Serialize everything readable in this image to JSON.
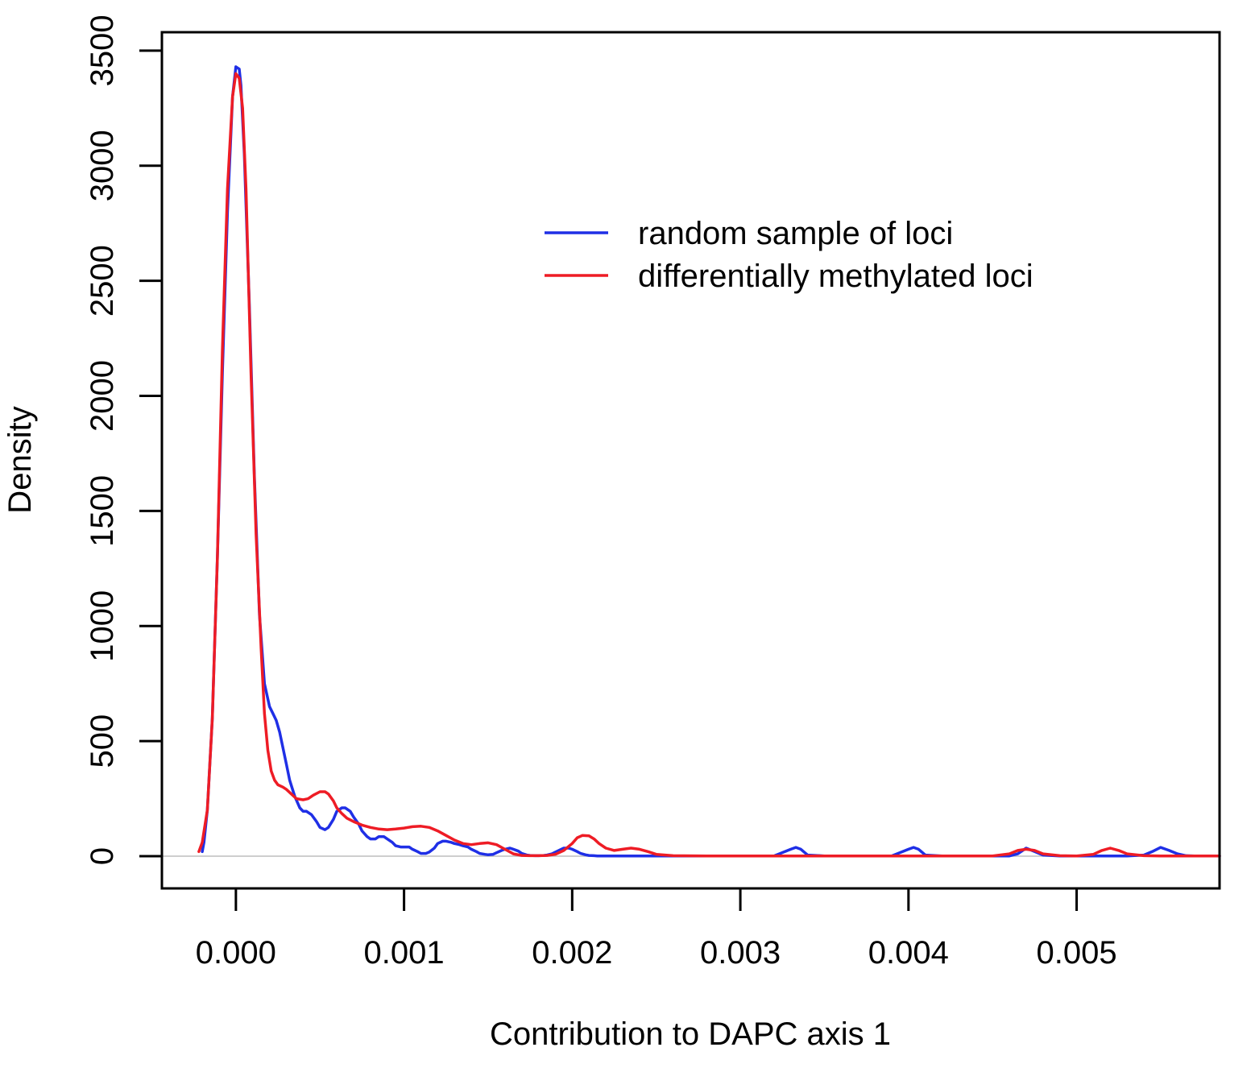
{
  "chart_data": {
    "type": "line",
    "title": "",
    "xlabel": "Contribution to DAPC axis 1",
    "ylabel": "Density",
    "xlim": [
      -0.00044,
      0.00585
    ],
    "ylim": [
      -140,
      3580
    ],
    "xticks": [
      0.0,
      0.001,
      0.002,
      0.003,
      0.004,
      0.005
    ],
    "xtick_labels": [
      "0.000",
      "0.001",
      "0.002",
      "0.003",
      "0.004",
      "0.005"
    ],
    "yticks": [
      0,
      500,
      1000,
      1500,
      2000,
      2500,
      3000,
      3500
    ],
    "ytick_labels": [
      "0",
      "500",
      "1000",
      "1500",
      "2000",
      "2500",
      "3000",
      "3500"
    ],
    "grid": false,
    "baseline": {
      "y": 0,
      "color": "#bdbdbd"
    },
    "legend": {
      "position": "top-right"
    },
    "series": [
      {
        "name": "random sample of loci",
        "color": "#1f2fe6",
        "x": [
          -0.0002,
          -0.00019,
          -0.00017,
          -0.00014,
          -0.00011,
          -8e-05,
          -5e-05,
          -2e-05,
          0.0,
          2e-05,
          3e-05,
          5e-05,
          8e-05,
          0.00011,
          0.00014,
          0.00017,
          0.0002,
          0.00022,
          0.00024,
          0.00026,
          0.00028,
          0.0003,
          0.00032,
          0.00035,
          0.00038,
          0.0004,
          0.00042,
          0.00045,
          0.00048,
          0.0005,
          0.00053,
          0.00055,
          0.00058,
          0.0006,
          0.00063,
          0.00065,
          0.00068,
          0.0007,
          0.00073,
          0.00075,
          0.00078,
          0.0008,
          0.00083,
          0.00085,
          0.00088,
          0.0009,
          0.00093,
          0.00095,
          0.00098,
          0.001,
          0.00103,
          0.00105,
          0.00108,
          0.0011,
          0.00113,
          0.00115,
          0.00118,
          0.0012,
          0.00123,
          0.00125,
          0.00128,
          0.0013,
          0.00133,
          0.00135,
          0.00138,
          0.0014,
          0.00143,
          0.00145,
          0.00148,
          0.0015,
          0.00153,
          0.00155,
          0.00158,
          0.0016,
          0.00163,
          0.00165,
          0.00168,
          0.0017,
          0.00173,
          0.00175,
          0.00178,
          0.0018,
          0.00183,
          0.00185,
          0.00188,
          0.0019,
          0.00193,
          0.00195,
          0.00198,
          0.002,
          0.00203,
          0.00205,
          0.00208,
          0.0021,
          0.00213,
          0.00215,
          0.00218,
          0.0022,
          0.00223,
          0.00225,
          0.00228,
          0.0023,
          0.00233,
          0.00235,
          0.00238,
          0.0024,
          0.00243,
          0.00245,
          0.00248,
          0.0025,
          0.0026,
          0.0028,
          0.003,
          0.0032,
          0.0033,
          0.00333,
          0.00336,
          0.0034,
          0.0035,
          0.0037,
          0.0039,
          0.004,
          0.00403,
          0.00406,
          0.0041,
          0.0042,
          0.0044,
          0.0045,
          0.0046,
          0.00465,
          0.0047,
          0.00475,
          0.0048,
          0.0049,
          0.005,
          0.0051,
          0.0052,
          0.0053,
          0.0054,
          0.00545,
          0.0055,
          0.00555,
          0.0056,
          0.00565,
          0.0057,
          0.0058,
          0.00585
        ],
        "y": [
          20,
          60,
          200,
          600,
          1300,
          2100,
          2800,
          3300,
          3430,
          3420,
          3350,
          3050,
          2400,
          1650,
          1050,
          750,
          650,
          620,
          590,
          540,
          470,
          400,
          330,
          260,
          210,
          195,
          195,
          180,
          150,
          125,
          115,
          125,
          160,
          195,
          210,
          210,
          195,
          170,
          140,
          110,
          85,
          75,
          75,
          85,
          85,
          75,
          60,
          45,
          40,
          40,
          40,
          30,
          20,
          12,
          12,
          18,
          35,
          55,
          65,
          65,
          60,
          55,
          50,
          45,
          40,
          30,
          20,
          12,
          8,
          6,
          8,
          15,
          25,
          30,
          35,
          30,
          22,
          12,
          5,
          3,
          2,
          2,
          3,
          5,
          10,
          18,
          28,
          35,
          35,
          30,
          20,
          12,
          6,
          3,
          2,
          1,
          1,
          1,
          1,
          1,
          1,
          1,
          1,
          1,
          1,
          1,
          1,
          1,
          1,
          1,
          1,
          1,
          1,
          1,
          30,
          38,
          30,
          5,
          1,
          1,
          1,
          30,
          38,
          30,
          5,
          1,
          1,
          1,
          1,
          10,
          35,
          20,
          5,
          1,
          1,
          1,
          1,
          1,
          5,
          20,
          38,
          25,
          10,
          2,
          1,
          1,
          1
        ]
      },
      {
        "name": "differentially methylated loci",
        "color": "#ee1c25",
        "x": [
          -0.00022,
          -0.0002,
          -0.00017,
          -0.00014,
          -0.00011,
          -8e-05,
          -5e-05,
          -2e-05,
          0.0,
          2e-05,
          4e-05,
          6e-05,
          9e-05,
          0.00012,
          0.00015,
          0.00017,
          0.00019,
          0.00021,
          0.00023,
          0.00025,
          0.00028,
          0.0003,
          0.00033,
          0.00036,
          0.0004,
          0.00043,
          0.00046,
          0.0005,
          0.00053,
          0.00055,
          0.00058,
          0.0006,
          0.00063,
          0.00066,
          0.0007,
          0.00075,
          0.0008,
          0.00085,
          0.0009,
          0.00095,
          0.001,
          0.00105,
          0.0011,
          0.00115,
          0.0012,
          0.00125,
          0.0013,
          0.00135,
          0.0014,
          0.00145,
          0.0015,
          0.00155,
          0.0016,
          0.00165,
          0.0017,
          0.00175,
          0.0018,
          0.00185,
          0.0019,
          0.00195,
          0.002,
          0.00203,
          0.00206,
          0.0021,
          0.00213,
          0.00216,
          0.0022,
          0.00225,
          0.0023,
          0.00235,
          0.0024,
          0.00245,
          0.0025,
          0.0026,
          0.0028,
          0.003,
          0.0033,
          0.0035,
          0.0038,
          0.004,
          0.0043,
          0.0045,
          0.0046,
          0.00465,
          0.0047,
          0.00475,
          0.0048,
          0.0049,
          0.005,
          0.0051,
          0.00515,
          0.0052,
          0.00525,
          0.0053,
          0.0054,
          0.0055,
          0.0056,
          0.0057,
          0.0058,
          0.00585
        ],
        "y": [
          20,
          60,
          200,
          600,
          1300,
          2200,
          2900,
          3300,
          3400,
          3380,
          3250,
          2900,
          2100,
          1400,
          900,
          620,
          460,
          370,
          330,
          310,
          300,
          290,
          270,
          250,
          245,
          250,
          265,
          280,
          280,
          270,
          240,
          210,
          185,
          165,
          150,
          135,
          125,
          118,
          115,
          118,
          122,
          128,
          130,
          125,
          110,
          90,
          70,
          55,
          50,
          55,
          58,
          50,
          30,
          10,
          3,
          2,
          2,
          3,
          8,
          25,
          55,
          80,
          90,
          88,
          75,
          55,
          35,
          25,
          30,
          35,
          30,
          20,
          8,
          2,
          1,
          1,
          1,
          1,
          1,
          1,
          1,
          1,
          10,
          25,
          30,
          25,
          10,
          2,
          1,
          8,
          25,
          35,
          25,
          10,
          2,
          1,
          1,
          1,
          1,
          1
        ]
      }
    ]
  }
}
